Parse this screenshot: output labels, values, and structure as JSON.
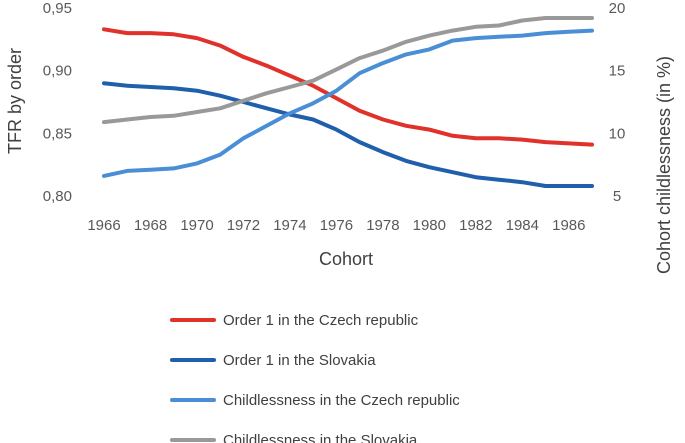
{
  "chart_data": {
    "type": "line",
    "x": [
      1966,
      1967,
      1968,
      1969,
      1970,
      1971,
      1972,
      1973,
      1974,
      1975,
      1976,
      1977,
      1978,
      1979,
      1980,
      1981,
      1982,
      1983,
      1984,
      1985,
      1986,
      1987
    ],
    "x_ticks": [
      "1966",
      "1968",
      "1970",
      "1972",
      "1974",
      "1976",
      "1978",
      "1980",
      "1982",
      "1984",
      "1986"
    ],
    "xlabel": "Cohort",
    "ylabel_left": "TFR by order",
    "ylabel_right": "Cohort childlessness (in %)",
    "ylim_left": [
      0.8,
      0.95
    ],
    "ylim_right": [
      5,
      20
    ],
    "y_ticks_left": [
      "0,80",
      "0,85",
      "0,90",
      "0,95"
    ],
    "y_ticks_right": [
      "5",
      "10",
      "15",
      "20"
    ],
    "grid": false,
    "legend_position": "bottom",
    "series": [
      {
        "name": "Order 1 in the Czech republic",
        "axis": "left",
        "color": "#e0312b",
        "values": [
          0.933,
          0.93,
          0.93,
          0.929,
          0.926,
          0.92,
          0.911,
          0.904,
          0.896,
          0.888,
          0.878,
          0.868,
          0.861,
          0.856,
          0.853,
          0.848,
          0.846,
          0.846,
          0.845,
          0.843,
          0.842,
          0.841
        ]
      },
      {
        "name": "Order 1 in the Slovakia",
        "axis": "left",
        "color": "#1f5fac",
        "values": [
          0.89,
          0.888,
          0.887,
          0.886,
          0.884,
          0.88,
          0.875,
          0.87,
          0.865,
          0.861,
          0.853,
          0.843,
          0.835,
          0.828,
          0.823,
          0.819,
          0.815,
          0.813,
          0.811,
          0.808,
          0.808,
          0.808
        ]
      },
      {
        "name": "Childlessness in the Czech republic",
        "axis": "right",
        "color": "#4a8fd6",
        "values": [
          6.6,
          7.0,
          7.1,
          7.2,
          7.6,
          8.3,
          9.6,
          10.6,
          11.6,
          12.4,
          13.4,
          14.8,
          15.6,
          16.3,
          16.7,
          17.4,
          17.6,
          17.7,
          17.8,
          18.0,
          18.1,
          18.2
        ]
      },
      {
        "name": "Childlessness in the Slovakia",
        "axis": "right",
        "color": "#999999",
        "values": [
          10.9,
          11.1,
          11.3,
          11.4,
          11.7,
          12.0,
          12.6,
          13.2,
          13.7,
          14.2,
          15.1,
          16.0,
          16.6,
          17.3,
          17.8,
          18.2,
          18.5,
          18.6,
          19.0,
          19.2,
          19.2,
          19.2
        ]
      }
    ]
  }
}
